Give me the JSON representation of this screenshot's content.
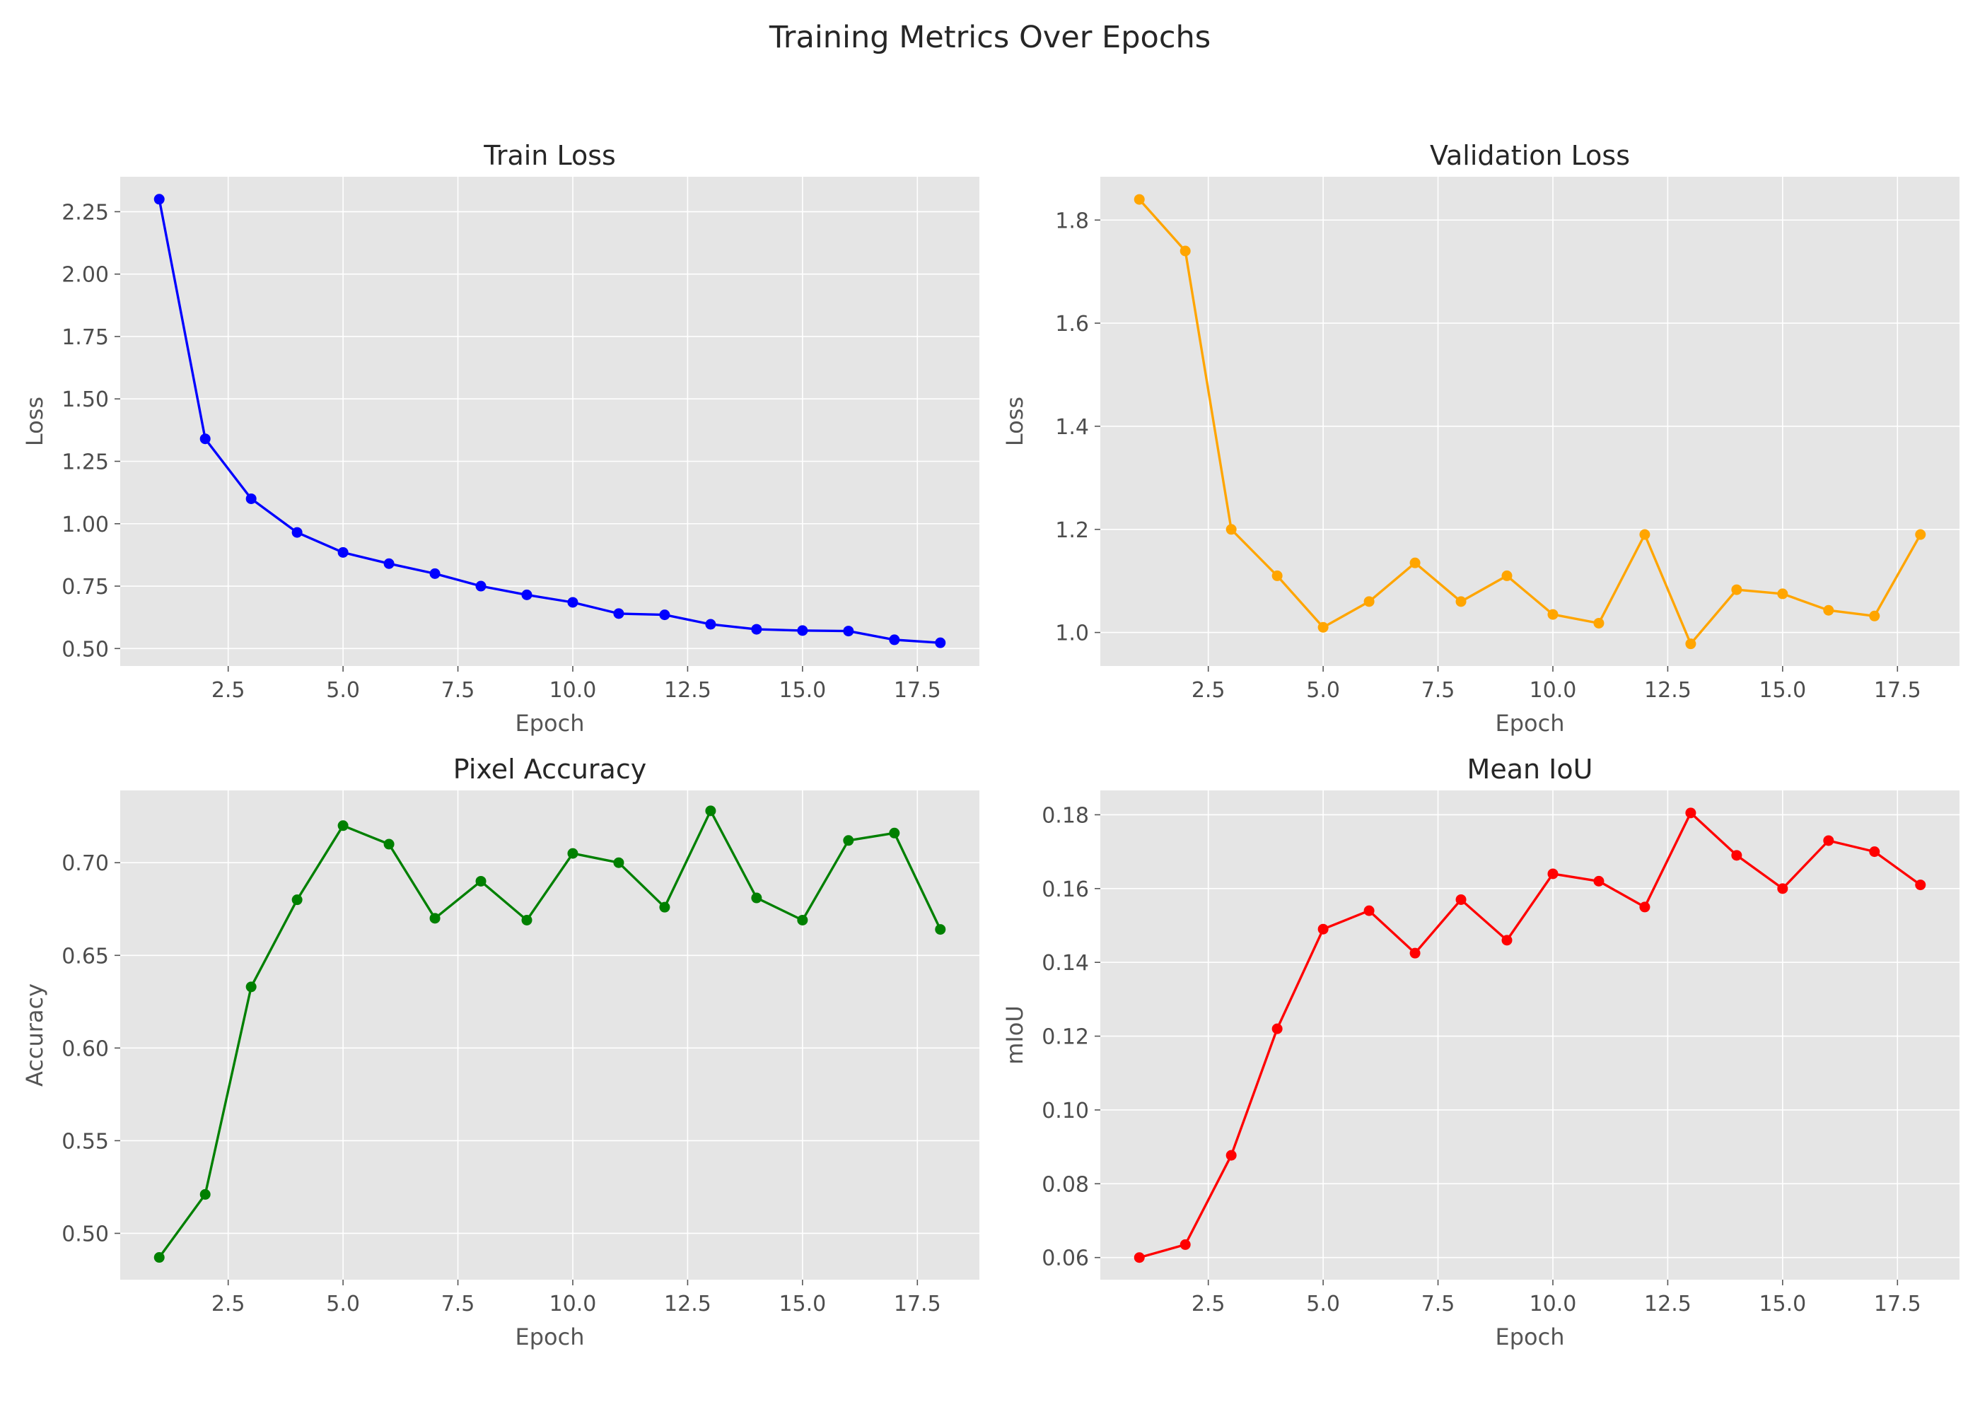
{
  "figure": {
    "title": "Training Metrics Over Epochs"
  },
  "chart_data": [
    {
      "type": "line",
      "title": "Train Loss",
      "xlabel": "Epoch",
      "ylabel": "Loss",
      "xlim": [
        0.15,
        18.85
      ],
      "ylim": [
        0.43,
        2.39
      ],
      "xticks": [
        2.5,
        5.0,
        7.5,
        10.0,
        12.5,
        15.0,
        17.5
      ],
      "xtick_labels": [
        "2.5",
        "5.0",
        "7.5",
        "10.0",
        "12.5",
        "15.0",
        "17.5"
      ],
      "yticks": [
        0.5,
        0.75,
        1.0,
        1.25,
        1.5,
        1.75,
        2.0,
        2.25
      ],
      "ytick_labels": [
        "0.50",
        "0.75",
        "1.00",
        "1.25",
        "1.50",
        "1.75",
        "2.00",
        "2.25"
      ],
      "grid": true,
      "background": "#e5e5e5",
      "series": [
        {
          "color": "#0000ff",
          "marker": "circle",
          "x": [
            1,
            2,
            3,
            4,
            5,
            6,
            7,
            8,
            9,
            10,
            11,
            12,
            13,
            14,
            15,
            16,
            17,
            18
          ],
          "y": [
            2.3,
            1.34,
            1.1,
            0.965,
            0.885,
            0.84,
            0.8,
            0.75,
            0.715,
            0.685,
            0.64,
            0.635,
            0.597,
            0.577,
            0.572,
            0.57,
            0.535,
            0.523
          ]
        }
      ]
    },
    {
      "type": "line",
      "title": "Validation Loss",
      "xlabel": "Epoch",
      "ylabel": "Loss",
      "xlim": [
        0.15,
        18.85
      ],
      "ylim": [
        0.935,
        1.884
      ],
      "xticks": [
        2.5,
        5.0,
        7.5,
        10.0,
        12.5,
        15.0,
        17.5
      ],
      "xtick_labels": [
        "2.5",
        "5.0",
        "7.5",
        "10.0",
        "12.5",
        "15.0",
        "17.5"
      ],
      "yticks": [
        1.0,
        1.2,
        1.4,
        1.6,
        1.8
      ],
      "ytick_labels": [
        "1.0",
        "1.2",
        "1.4",
        "1.6",
        "1.8"
      ],
      "grid": true,
      "background": "#e5e5e5",
      "series": [
        {
          "color": "#ffa500",
          "marker": "circle",
          "x": [
            1,
            2,
            3,
            4,
            5,
            6,
            7,
            8,
            9,
            10,
            11,
            12,
            13,
            14,
            15,
            16,
            17,
            18
          ],
          "y": [
            1.84,
            1.74,
            1.2,
            1.11,
            1.01,
            1.06,
            1.135,
            1.06,
            1.11,
            1.035,
            1.018,
            1.19,
            0.978,
            1.083,
            1.075,
            1.043,
            1.032,
            1.19
          ]
        }
      ]
    },
    {
      "type": "line",
      "title": "Pixel Accuracy",
      "xlabel": "Epoch",
      "ylabel": "Accuracy",
      "xlim": [
        0.15,
        18.85
      ],
      "ylim": [
        0.475,
        0.739
      ],
      "xticks": [
        2.5,
        5.0,
        7.5,
        10.0,
        12.5,
        15.0,
        17.5
      ],
      "xtick_labels": [
        "2.5",
        "5.0",
        "7.5",
        "10.0",
        "12.5",
        "15.0",
        "17.5"
      ],
      "yticks": [
        0.5,
        0.55,
        0.6,
        0.65,
        0.7
      ],
      "ytick_labels": [
        "0.50",
        "0.55",
        "0.60",
        "0.65",
        "0.70"
      ],
      "grid": true,
      "background": "#e5e5e5",
      "series": [
        {
          "color": "#008000",
          "marker": "circle",
          "x": [
            1,
            2,
            3,
            4,
            5,
            6,
            7,
            8,
            9,
            10,
            11,
            12,
            13,
            14,
            15,
            16,
            17,
            18
          ],
          "y": [
            0.487,
            0.521,
            0.633,
            0.68,
            0.72,
            0.71,
            0.67,
            0.69,
            0.669,
            0.705,
            0.7,
            0.676,
            0.728,
            0.681,
            0.669,
            0.712,
            0.716,
            0.664
          ]
        }
      ]
    },
    {
      "type": "line",
      "title": "Mean IoU",
      "xlabel": "Epoch",
      "ylabel": "mIoU",
      "xlim": [
        0.15,
        18.85
      ],
      "ylim": [
        0.054,
        0.1866
      ],
      "xticks": [
        2.5,
        5.0,
        7.5,
        10.0,
        12.5,
        15.0,
        17.5
      ],
      "xtick_labels": [
        "2.5",
        "5.0",
        "7.5",
        "10.0",
        "12.5",
        "15.0",
        "17.5"
      ],
      "yticks": [
        0.06,
        0.08,
        0.1,
        0.12,
        0.14,
        0.16,
        0.18
      ],
      "ytick_labels": [
        "0.06",
        "0.08",
        "0.10",
        "0.12",
        "0.14",
        "0.16",
        "0.18"
      ],
      "grid": true,
      "background": "#e5e5e5",
      "series": [
        {
          "color": "#ff0000",
          "marker": "circle",
          "x": [
            1,
            2,
            3,
            4,
            5,
            6,
            7,
            8,
            9,
            10,
            11,
            12,
            13,
            14,
            15,
            16,
            17,
            18
          ],
          "y": [
            0.06,
            0.0635,
            0.0877,
            0.122,
            0.149,
            0.154,
            0.1425,
            0.157,
            0.146,
            0.164,
            0.162,
            0.155,
            0.1805,
            0.169,
            0.16,
            0.173,
            0.17,
            0.161
          ]
        }
      ]
    }
  ]
}
